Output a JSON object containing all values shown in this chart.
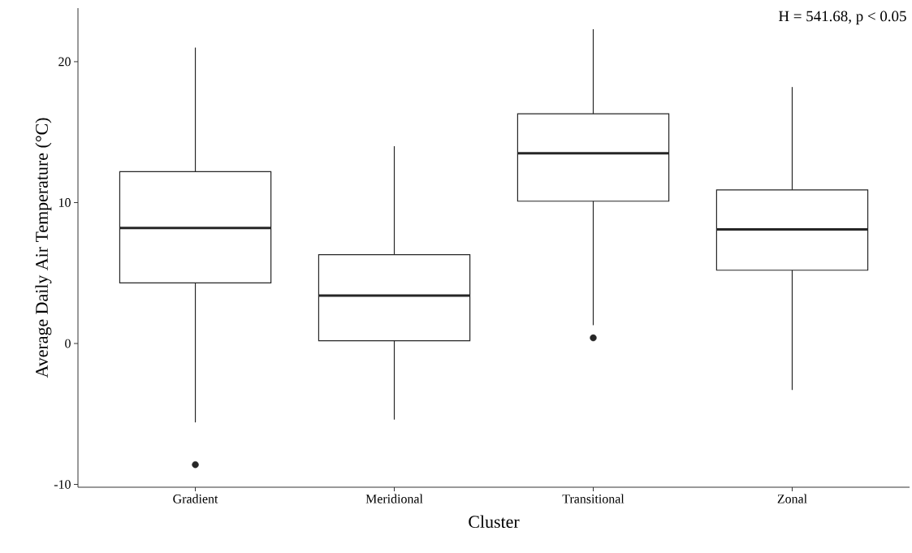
{
  "chart_data": {
    "type": "box",
    "xlabel": "Cluster",
    "ylabel": "Average Daily Air Temperature (°C)",
    "categories": [
      "Gradient",
      "Meridional",
      "Transitional",
      "Zonal"
    ],
    "boxes": [
      {
        "low": -5.6,
        "q1": 4.3,
        "median": 8.2,
        "q3": 12.2,
        "high": 21.0,
        "outliers": [
          -8.6
        ]
      },
      {
        "low": -5.4,
        "q1": 0.2,
        "median": 3.4,
        "q3": 6.3,
        "high": 14.0
      },
      {
        "low": 1.3,
        "q1": 10.1,
        "median": 13.5,
        "q3": 16.3,
        "high": 22.3,
        "outliers": [
          0.4
        ]
      },
      {
        "low": -3.3,
        "q1": 5.2,
        "median": 8.1,
        "q3": 10.9,
        "high": 18.2
      }
    ],
    "ylim": [
      -10.2,
      23.8
    ],
    "yticks": [
      -10,
      0,
      10,
      20
    ],
    "grid": false,
    "annotations": [
      "H = 541.68, p < 0.05"
    ]
  }
}
